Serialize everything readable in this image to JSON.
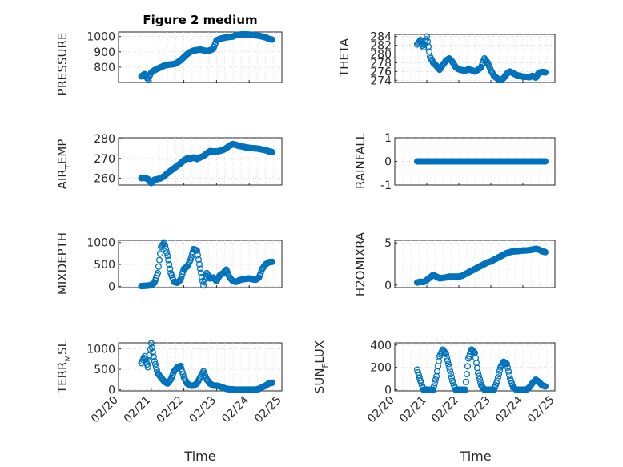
{
  "chart_data": [
    {
      "type": "scatter",
      "title": "Figure 2 medium",
      "xlabel": "",
      "ylabel": "PRESSURE",
      "xlim": [
        "02/20",
        "02/25"
      ],
      "ylim": [
        700,
        1030
      ],
      "yticks": [
        800,
        900,
        1000
      ],
      "series": [
        {
          "x": [
            "02/20 16:48",
            "02/20 19:12",
            "02/20 21:36",
            "02/21 00:00",
            "02/21 02:24",
            "02/21 04:48",
            "02/21 07:12",
            "02/21 09:36",
            "02/21 12:00",
            "02/21 14:24",
            "02/21 16:48",
            "02/21 19:12",
            "02/21 21:36",
            "02/22 00:00",
            "02/22 02:24",
            "02/22 04:48",
            "02/22 07:12",
            "02/22 09:36",
            "02/22 12:00",
            "02/22 14:24",
            "02/22 16:48",
            "02/22 19:12",
            "02/22 21:36",
            "02/23 00:00",
            "02/23 02:24",
            "02/23 04:48",
            "02/23 07:12",
            "02/23 09:36",
            "02/23 12:00",
            "02/23 14:24",
            "02/23 16:48",
            "02/23 19:12",
            "02/23 21:36",
            "02/24 00:00",
            "02/24 02:24",
            "02/24 04:48",
            "02/24 07:12",
            "02/24 09:36",
            "02/24 12:00",
            "02/24 14:24",
            "02/24 16:48"
          ],
          "values": [
            740,
            755,
            722,
            765,
            780,
            790,
            800,
            810,
            815,
            818,
            820,
            830,
            845,
            865,
            885,
            900,
            908,
            912,
            915,
            910,
            905,
            910,
            920,
            975,
            985,
            990,
            995,
            998,
            1000,
            1010,
            1012,
            1015,
            1015,
            1013,
            1010,
            1008,
            1005,
            1000,
            995,
            985,
            980
          ]
        }
      ]
    },
    {
      "type": "scatter",
      "xlabel": "",
      "ylabel": "THETA",
      "xlim": [
        "02/20",
        "02/25"
      ],
      "ylim": [
        273.5,
        284.5
      ],
      "yticks": [
        274,
        276,
        278,
        280,
        282,
        284
      ],
      "series": [
        {
          "x": [
            "02/20 16:48",
            "02/20 19:12",
            "02/20 21:36",
            "02/21 00:00",
            "02/21 02:24",
            "02/21 04:48",
            "02/21 07:12",
            "02/21 09:36",
            "02/21 12:00",
            "02/21 14:24",
            "02/21 16:48",
            "02/21 19:12",
            "02/21 21:36",
            "02/22 00:00",
            "02/22 02:24",
            "02/22 04:48",
            "02/22 07:12",
            "02/22 09:36",
            "02/22 12:00",
            "02/22 14:24",
            "02/22 16:48",
            "02/22 19:12",
            "02/22 21:36",
            "02/23 00:00",
            "02/23 02:24",
            "02/23 04:48",
            "02/23 07:12",
            "02/23 09:36",
            "02/23 12:00",
            "02/23 14:24",
            "02/23 16:48",
            "02/23 19:12",
            "02/23 21:36",
            "02/24 00:00",
            "02/24 02:24",
            "02/24 04:48",
            "02/24 07:12",
            "02/24 09:36",
            "02/24 12:00",
            "02/24 14:24",
            "02/24 16:48"
          ],
          "values": [
            282.2,
            283.2,
            281.5,
            284,
            279.4,
            278,
            277.3,
            276.4,
            277.5,
            278.5,
            279,
            278.2,
            277,
            276.5,
            276.3,
            276.2,
            276.5,
            276.3,
            276,
            276.4,
            277,
            279,
            278,
            276.3,
            275,
            274.4,
            274,
            274.5,
            275.5,
            276,
            275.6,
            275.2,
            275,
            274.8,
            274.8,
            274.7,
            275,
            274.6,
            275.7,
            275.9,
            275.8
          ]
        }
      ]
    },
    {
      "type": "scatter",
      "xlabel": "",
      "ylabel": "AIR_TEMP",
      "xlim": [
        "02/20",
        "02/25"
      ],
      "ylim": [
        256.5,
        280.5
      ],
      "yticks": [
        260,
        270,
        280
      ],
      "series": [
        {
          "x": [
            "02/20 16:48",
            "02/20 19:12",
            "02/20 21:36",
            "02/21 00:00",
            "02/21 02:24",
            "02/21 04:48",
            "02/21 07:12",
            "02/21 09:36",
            "02/21 12:00",
            "02/21 14:24",
            "02/21 16:48",
            "02/21 19:12",
            "02/21 21:36",
            "02/22 00:00",
            "02/22 02:24",
            "02/22 04:48",
            "02/22 07:12",
            "02/22 09:36",
            "02/22 12:00",
            "02/22 14:24",
            "02/22 16:48",
            "02/22 19:12",
            "02/22 21:36",
            "02/23 00:00",
            "02/23 02:24",
            "02/23 04:48",
            "02/23 07:12",
            "02/23 09:36",
            "02/23 12:00",
            "02/23 14:24",
            "02/23 16:48",
            "02/23 19:12",
            "02/23 21:36",
            "02/24 00:00",
            "02/24 02:24",
            "02/24 04:48",
            "02/24 07:12",
            "02/24 09:36",
            "02/24 12:00",
            "02/24 14:24",
            "02/24 16:48"
          ],
          "values": [
            260,
            260.2,
            259.5,
            257.5,
            259.2,
            259.5,
            260,
            261,
            262.5,
            263.8,
            265,
            266.3,
            267.5,
            269,
            270,
            269.8,
            270.5,
            269.7,
            270.5,
            271.2,
            272.5,
            273.7,
            273.6,
            273.5,
            273.8,
            274.3,
            275.2,
            276.5,
            277.3,
            276.8,
            276.3,
            276,
            275.6,
            275.4,
            275.2,
            275.1,
            274.9,
            274.5,
            274.2,
            273.6,
            273.2
          ]
        }
      ]
    },
    {
      "type": "scatter",
      "xlabel": "",
      "ylabel": "RAINFALL",
      "xlim": [
        "02/20",
        "02/25"
      ],
      "ylim": [
        -1,
        1
      ],
      "yticks": [
        -1,
        0,
        1
      ],
      "series": [
        {
          "x": [
            "02/20 16:48",
            "02/20 19:12",
            "02/20 21:36",
            "02/21 00:00",
            "02/21 02:24",
            "02/21 04:48",
            "02/21 07:12",
            "02/21 09:36",
            "02/21 12:00",
            "02/21 14:24",
            "02/21 16:48",
            "02/21 19:12",
            "02/21 21:36",
            "02/22 00:00",
            "02/22 02:24",
            "02/22 04:48",
            "02/22 07:12",
            "02/22 09:36",
            "02/22 12:00",
            "02/22 14:24",
            "02/22 16:48",
            "02/22 19:12",
            "02/22 21:36",
            "02/23 00:00",
            "02/23 02:24",
            "02/23 04:48",
            "02/23 07:12",
            "02/23 09:36",
            "02/23 12:00",
            "02/23 14:24",
            "02/23 16:48",
            "02/23 19:12",
            "02/23 21:36",
            "02/24 00:00",
            "02/24 02:24",
            "02/24 04:48",
            "02/24 07:12",
            "02/24 09:36",
            "02/24 12:00",
            "02/24 14:24",
            "02/24 16:48"
          ],
          "values": [
            0,
            0,
            0,
            0,
            0,
            0,
            0,
            0,
            0,
            0,
            0,
            0,
            0,
            0,
            0,
            0,
            0,
            0,
            0,
            0,
            0,
            0,
            0,
            0,
            0,
            0,
            0,
            0,
            0,
            0,
            0,
            0,
            0,
            0,
            0,
            0,
            0,
            0,
            0,
            0,
            0
          ]
        }
      ]
    },
    {
      "type": "scatter",
      "xlabel": "",
      "ylabel": "MIXDEPTH",
      "xlim": [
        "02/20",
        "02/25"
      ],
      "ylim": [
        -30,
        1050
      ],
      "yticks": [
        0,
        500,
        1000
      ],
      "series": [
        {
          "x": [
            "02/20 16:48",
            "02/20 19:12",
            "02/20 21:36",
            "02/21 00:00",
            "02/21 02:24",
            "02/21 04:48",
            "02/21 07:12",
            "02/21 09:36",
            "02/21 12:00",
            "02/21 14:24",
            "02/21 16:48",
            "02/21 19:12",
            "02/21 21:36",
            "02/22 00:00",
            "02/22 02:24",
            "02/22 04:48",
            "02/22 07:12",
            "02/22 09:36",
            "02/22 12:00",
            "02/22 14:24",
            "02/22 16:48",
            "02/22 19:12",
            "02/22 21:36",
            "02/23 00:00",
            "02/23 02:24",
            "02/23 04:48",
            "02/23 07:12",
            "02/23 09:36",
            "02/23 12:00",
            "02/23 14:24",
            "02/23 16:48",
            "02/23 19:12",
            "02/23 21:36",
            "02/24 00:00",
            "02/24 02:24",
            "02/24 04:48",
            "02/24 07:12",
            "02/24 09:36",
            "02/24 12:00",
            "02/24 14:24",
            "02/24 16:48"
          ],
          "values": [
            5,
            10,
            15,
            30,
            80,
            300,
            900,
            1000,
            700,
            300,
            100,
            80,
            150,
            400,
            450,
            600,
            850,
            820,
            400,
            20,
            300,
            180,
            200,
            120,
            250,
            300,
            380,
            200,
            120,
            100,
            140,
            160,
            170,
            180,
            160,
            150,
            200,
            400,
            500,
            550,
            560
          ]
        }
      ]
    },
    {
      "type": "scatter",
      "xlabel": "",
      "ylabel": "H2OMIXRA",
      "xlim": [
        "02/20",
        "02/25"
      ],
      "ylim": [
        -0.3,
        5.3
      ],
      "yticks": [
        0,
        5
      ],
      "series": [
        {
          "x": [
            "02/20 16:48",
            "02/20 19:12",
            "02/20 21:36",
            "02/21 00:00",
            "02/21 02:24",
            "02/21 04:48",
            "02/21 07:12",
            "02/21 09:36",
            "02/21 12:00",
            "02/21 14:24",
            "02/21 16:48",
            "02/21 19:12",
            "02/21 21:36",
            "02/22 00:00",
            "02/22 02:24",
            "02/22 04:48",
            "02/22 07:12",
            "02/22 09:36",
            "02/22 12:00",
            "02/22 14:24",
            "02/22 16:48",
            "02/22 19:12",
            "02/22 21:36",
            "02/23 00:00",
            "02/23 02:24",
            "02/23 04:48",
            "02/23 07:12",
            "02/23 09:36",
            "02/23 12:00",
            "02/23 14:24",
            "02/23 16:48",
            "02/23 19:12",
            "02/23 21:36",
            "02/24 00:00",
            "02/24 02:24",
            "02/24 04:48",
            "02/24 07:12",
            "02/24 09:36",
            "02/24 12:00",
            "02/24 14:24",
            "02/24 16:48"
          ],
          "values": [
            0.3,
            0.4,
            0.35,
            0.6,
            0.9,
            1.2,
            1.0,
            0.8,
            0.85,
            0.9,
            1.0,
            1.0,
            1.0,
            1.0,
            1.1,
            1.3,
            1.5,
            1.7,
            1.9,
            2.1,
            2.3,
            2.5,
            2.7,
            2.8,
            3.0,
            3.2,
            3.4,
            3.6,
            3.8,
            3.9,
            4.0,
            4.0,
            4.05,
            4.1,
            4.1,
            4.15,
            4.2,
            4.3,
            4.2,
            4.0,
            3.9
          ]
        }
      ]
    },
    {
      "type": "scatter",
      "xlabel": "Time",
      "ylabel": "TERR_MSL",
      "xlim": [
        "02/20",
        "02/25"
      ],
      "ylim": [
        -30,
        1150
      ],
      "yticks": [
        0,
        500,
        1000
      ],
      "xticks": [
        "02/20",
        "02/21",
        "02/22",
        "02/23",
        "02/24",
        "02/25"
      ],
      "series": [
        {
          "x": [
            "02/20 16:48",
            "02/20 19:12",
            "02/20 21:36",
            "02/21 00:00",
            "02/21 02:24",
            "02/21 04:48",
            "02/21 07:12",
            "02/21 09:36",
            "02/21 12:00",
            "02/21 14:24",
            "02/21 16:48",
            "02/21 19:12",
            "02/21 21:36",
            "02/22 00:00",
            "02/22 02:24",
            "02/22 04:48",
            "02/22 07:12",
            "02/22 09:36",
            "02/22 12:00",
            "02/22 14:24",
            "02/22 16:48",
            "02/22 19:12",
            "02/22 21:36",
            "02/23 00:00",
            "02/23 02:24",
            "02/23 04:48",
            "02/23 07:12",
            "02/23 09:36",
            "02/23 12:00",
            "02/23 14:24",
            "02/23 16:48",
            "02/23 19:12",
            "02/23 21:36",
            "02/24 00:00",
            "02/24 02:24",
            "02/24 04:48",
            "02/24 07:12",
            "02/24 09:36",
            "02/24 12:00",
            "02/24 14:24",
            "02/24 16:48"
          ],
          "values": [
            650,
            820,
            550,
            1140,
            700,
            400,
            300,
            200,
            150,
            250,
            450,
            550,
            580,
            300,
            150,
            100,
            100,
            150,
            300,
            450,
            250,
            150,
            100,
            100,
            80,
            50,
            20,
            10,
            5,
            0,
            0,
            0,
            0,
            0,
            0,
            0,
            20,
            60,
            100,
            150,
            170
          ]
        }
      ]
    },
    {
      "type": "scatter",
      "xlabel": "Time",
      "ylabel": "SUN_FLUX",
      "xlim": [
        "02/20",
        "02/25"
      ],
      "ylim": [
        -10,
        420
      ],
      "yticks": [
        0,
        200,
        400
      ],
      "xticks": [
        "02/20",
        "02/21",
        "02/22",
        "02/23",
        "02/24",
        "02/25"
      ],
      "series": [
        {
          "x": [
            "02/20 16:48",
            "02/20 19:12",
            "02/20 21:36",
            "02/21 00:00",
            "02/21 02:24",
            "02/21 04:48",
            "02/21 07:12",
            "02/21 09:36",
            "02/21 12:00",
            "02/21 14:24",
            "02/21 16:48",
            "02/21 19:12",
            "02/21 21:36",
            "02/22 00:00",
            "02/22 02:24",
            "02/22 04:48",
            "02/22 07:12",
            "02/22 09:36",
            "02/22 12:00",
            "02/22 14:24",
            "02/22 16:48",
            "02/22 19:12",
            "02/22 21:36",
            "02/23 00:00",
            "02/23 02:24",
            "02/23 04:48",
            "02/23 07:12",
            "02/23 09:36",
            "02/23 12:00",
            "02/23 14:24",
            "02/23 16:48",
            "02/23 19:12",
            "02/23 21:36",
            "02/24 00:00",
            "02/24 02:24",
            "02/24 04:48",
            "02/24 07:12",
            "02/24 09:36",
            "02/24 12:00",
            "02/24 14:24",
            "02/24 16:48"
          ],
          "values": [
            180,
            80,
            0,
            0,
            0,
            0,
            120,
            300,
            360,
            320,
            200,
            80,
            0,
            0,
            0,
            0,
            280,
            360,
            330,
            150,
            40,
            0,
            0,
            0,
            0,
            80,
            200,
            250,
            230,
            100,
            20,
            0,
            0,
            0,
            0,
            20,
            60,
            90,
            70,
            40,
            30
          ]
        }
      ]
    }
  ]
}
